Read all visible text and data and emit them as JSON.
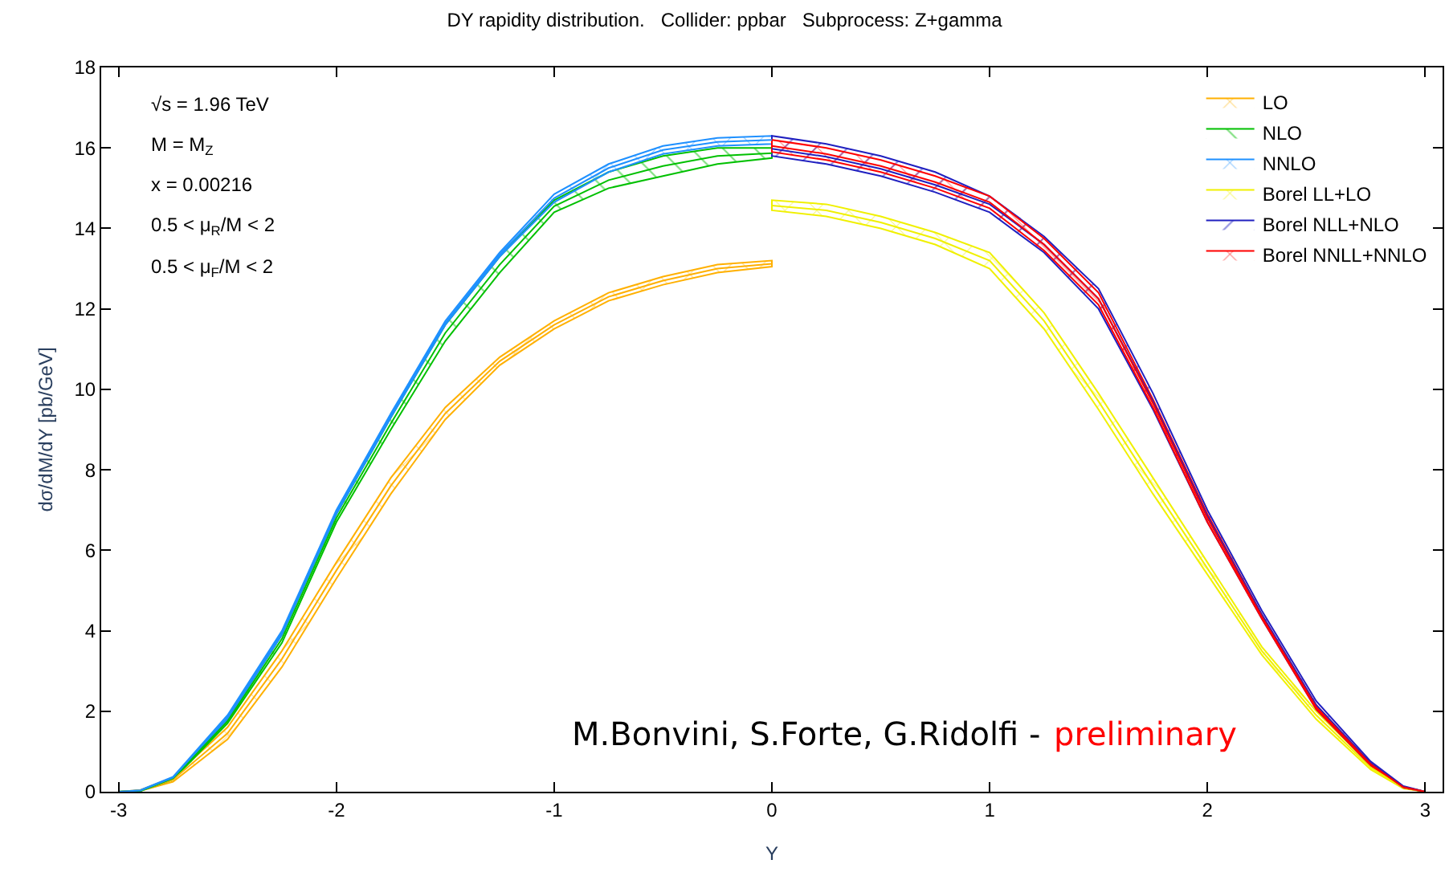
{
  "chart_data": {
    "type": "line",
    "title": "DY rapidity distribution.   Collider: ppbar   Subprocess: Z+gamma",
    "xlabel": "Y",
    "ylabel": "dσ/dM/dY [pb/GeV]",
    "xlim": [
      -3.08,
      3.08
    ],
    "xticks": [
      -3,
      -2,
      -1,
      0,
      1,
      2,
      3
    ],
    "ylim": [
      0,
      18
    ],
    "yticks": [
      0,
      2,
      4,
      6,
      8,
      10,
      12,
      14,
      16,
      18
    ],
    "legend": "top right",
    "marker": "none",
    "line_style": "solid",
    "series": [
      {
        "name": "LO",
        "color": "#ffb000",
        "x": [
          -3.0,
          -2.9,
          -2.75,
          -2.5,
          -2.25,
          -2.0,
          -1.75,
          -1.5,
          -1.25,
          -1.0,
          -0.75,
          -0.5,
          -0.25,
          0.0
        ],
        "values": [
          0,
          0.03,
          0.3,
          1.45,
          3.3,
          5.5,
          7.6,
          9.4,
          10.7,
          11.6,
          12.3,
          12.7,
          13.0,
          13.12
        ],
        "lower": [
          0,
          0.02,
          0.25,
          1.3,
          3.1,
          5.3,
          7.4,
          9.25,
          10.6,
          11.5,
          12.2,
          12.6,
          12.9,
          13.05
        ],
        "upper": [
          0,
          0.04,
          0.35,
          1.6,
          3.5,
          5.7,
          7.8,
          9.55,
          10.8,
          11.7,
          12.4,
          12.8,
          13.1,
          13.2
        ]
      },
      {
        "name": "NLO",
        "color": "#00c000",
        "x": [
          -3.0,
          -2.9,
          -2.75,
          -2.5,
          -2.25,
          -2.0,
          -1.75,
          -1.5,
          -1.25,
          -1.0,
          -0.75,
          -0.5,
          -0.25,
          0.0
        ],
        "values": [
          0,
          0.02,
          0.33,
          1.75,
          3.8,
          6.8,
          9.15,
          11.4,
          13.1,
          14.55,
          15.2,
          15.55,
          15.8,
          15.87
        ],
        "lower": [
          0,
          0.02,
          0.3,
          1.7,
          3.7,
          6.7,
          9.0,
          11.2,
          12.9,
          14.4,
          15.0,
          15.3,
          15.6,
          15.75
        ],
        "upper": [
          0,
          0.03,
          0.35,
          1.8,
          3.9,
          6.9,
          9.3,
          11.6,
          13.3,
          14.7,
          15.4,
          15.8,
          16.0,
          16.0
        ]
      },
      {
        "name": "NNLO",
        "color": "#1e90ff",
        "x": [
          -3.0,
          -2.9,
          -2.75,
          -2.5,
          -2.25,
          -2.0,
          -1.75,
          -1.5,
          -1.25,
          -1.0,
          -0.75,
          -0.5,
          -0.25,
          0.0
        ],
        "values": [
          0,
          0.03,
          0.35,
          1.85,
          3.95,
          6.95,
          9.35,
          11.65,
          13.35,
          14.75,
          15.5,
          15.95,
          16.15,
          16.2
        ],
        "lower": [
          0,
          0.02,
          0.33,
          1.8,
          3.9,
          6.9,
          9.3,
          11.6,
          13.3,
          14.65,
          15.4,
          15.85,
          16.05,
          16.1
        ],
        "upper": [
          0,
          0.04,
          0.37,
          1.9,
          4.0,
          7.0,
          9.4,
          11.7,
          13.4,
          14.85,
          15.6,
          16.05,
          16.25,
          16.3
        ]
      },
      {
        "name": "Borel LL+LO",
        "color": "#f0f000",
        "x": [
          0.0,
          0.25,
          0.5,
          0.75,
          1.0,
          1.25,
          1.5,
          1.75,
          2.0,
          2.25,
          2.5,
          2.75,
          2.9,
          3.0
        ],
        "values": [
          14.57,
          14.45,
          14.15,
          13.75,
          13.2,
          11.7,
          9.7,
          7.6,
          5.55,
          3.5,
          1.9,
          0.6,
          0.1,
          0
        ],
        "lower": [
          14.45,
          14.3,
          14.0,
          13.6,
          13.0,
          11.5,
          9.5,
          7.4,
          5.4,
          3.4,
          1.8,
          0.55,
          0.08,
          0
        ],
        "upper": [
          14.7,
          14.6,
          14.3,
          13.9,
          13.4,
          11.9,
          9.9,
          7.8,
          5.7,
          3.6,
          2.0,
          0.65,
          0.12,
          0
        ]
      },
      {
        "name": "Borel NLL+NLO",
        "color": "#2020c0",
        "x": [
          0.0,
          0.25,
          0.5,
          0.75,
          1.0,
          1.25,
          1.5,
          1.75,
          2.0,
          2.25,
          2.5,
          2.75,
          2.9,
          3.0
        ],
        "values": [
          15.98,
          15.78,
          15.48,
          15.08,
          14.6,
          13.6,
          12.25,
          9.7,
          6.85,
          4.4,
          2.15,
          0.7,
          0.12,
          0
        ],
        "lower": [
          15.8,
          15.6,
          15.3,
          14.9,
          14.4,
          13.4,
          12.0,
          9.5,
          6.7,
          4.3,
          2.05,
          0.65,
          0.1,
          0
        ],
        "upper": [
          16.3,
          16.1,
          15.8,
          15.4,
          14.8,
          13.8,
          12.5,
          9.9,
          7.0,
          4.5,
          2.25,
          0.75,
          0.14,
          0
        ]
      },
      {
        "name": "Borel NNLL+NNLO",
        "color": "#ff0000",
        "x": [
          0.0,
          0.25,
          0.5,
          0.75,
          1.0,
          1.25,
          1.5,
          1.75,
          2.0,
          2.25,
          2.5,
          2.75,
          2.9,
          3.0
        ],
        "values": [
          16.05,
          15.85,
          15.55,
          15.15,
          14.65,
          13.6,
          12.25,
          9.65,
          6.8,
          4.35,
          2.1,
          0.68,
          0.11,
          0
        ],
        "lower": [
          15.9,
          15.7,
          15.4,
          15.0,
          14.5,
          13.45,
          12.1,
          9.55,
          6.7,
          4.3,
          2.05,
          0.65,
          0.1,
          0
        ],
        "upper": [
          16.2,
          16.0,
          15.7,
          15.3,
          14.8,
          13.75,
          12.4,
          9.75,
          6.9,
          4.4,
          2.15,
          0.7,
          0.12,
          0
        ]
      }
    ],
    "annotations": [
      "√s = 1.96 TeV",
      "M = M$_{Z}$",
      "x = 0.00216",
      "0.5 < μ$_{R}$/M < 2",
      "0.5 < μ$_{F}$/M < 2",
      "M.Bonvini, S.Forte, G.Ridolfi -",
      "preliminary"
    ]
  }
}
